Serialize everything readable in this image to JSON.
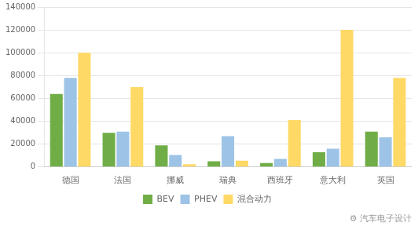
{
  "chart_data": {
    "type": "bar",
    "categories": [
      "德国",
      "法国",
      "挪威",
      "瑞典",
      "西班牙",
      "意大利",
      "英国"
    ],
    "series": [
      {
        "name": "BEV",
        "color": "#70AD47",
        "values": [
          64000,
          30000,
          19000,
          5000,
          3500,
          13000,
          31000
        ]
      },
      {
        "name": "PHEV",
        "color": "#9DC3E6",
        "values": [
          78000,
          31000,
          10500,
          27000,
          7000,
          16000,
          26000
        ]
      },
      {
        "name": "混合动力",
        "color": "#FFD966",
        "values": [
          100000,
          70000,
          2500,
          5500,
          41000,
          120000,
          78000
        ]
      }
    ],
    "ylim": [
      0,
      140000
    ],
    "yticks": [
      0,
      20000,
      40000,
      60000,
      80000,
      100000,
      120000,
      140000
    ],
    "grid": true,
    "legend": "bottom",
    "annotations": [
      "⚙",
      "汽车电子设计"
    ]
  }
}
